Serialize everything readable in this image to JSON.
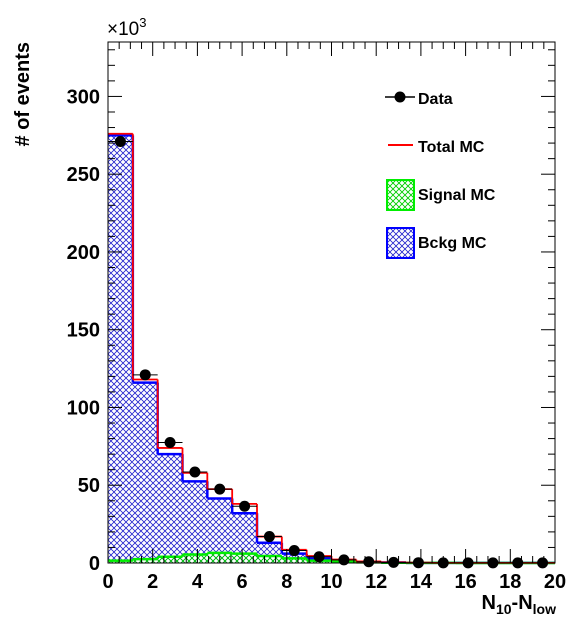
{
  "chart_data": {
    "type": "bar",
    "xlabel": {
      "main": "N",
      "sub1": "10",
      "mid": "-N",
      "sub2": "low"
    },
    "ylabel": "# of events",
    "exponent_prefix": "×10",
    "exponent_power": "3",
    "xlim": [
      0,
      20
    ],
    "ylim": [
      0,
      335
    ],
    "grid": false,
    "legend_placement": "top-right",
    "x_ticks": [
      "0",
      "2",
      "4",
      "6",
      "8",
      "10",
      "12",
      "14",
      "16",
      "18",
      "20"
    ],
    "y_ticks": [
      "0",
      "50",
      "100",
      "150",
      "200",
      "250",
      "300"
    ],
    "bin_edges": [
      0,
      1.111,
      2.222,
      3.333,
      4.444,
      5.556,
      6.667,
      7.778,
      8.889,
      10,
      11.111,
      12.222,
      13.333,
      14.444,
      15.556,
      16.667,
      17.778,
      18.889,
      20
    ],
    "series": [
      {
        "name": "Data",
        "kind": "points",
        "color": "#000000",
        "values": [
          271,
          121,
          77.5,
          58.5,
          47.5,
          36.5,
          17,
          8,
          4,
          2,
          0.8,
          0.4,
          0.2,
          0.1,
          0.1,
          0.1,
          0.1,
          0.1
        ]
      },
      {
        "name": "Total MC",
        "kind": "line",
        "color": "#ff0000",
        "values": [
          276,
          118,
          74,
          58,
          47.5,
          38,
          17,
          8.5,
          4.5,
          2.2,
          1,
          0.5,
          0.2,
          0.1,
          0.1,
          0.1,
          0.1,
          0.1
        ]
      },
      {
        "name": "Signal MC",
        "kind": "hatched",
        "color": "#00ee00",
        "values": [
          1.5,
          2.5,
          4,
          5.5,
          6.5,
          6,
          4.5,
          3,
          1.5,
          0.8,
          0.4,
          0.2,
          0.1,
          0.05,
          0,
          0,
          0,
          0
        ]
      },
      {
        "name": "Bckg MC",
        "kind": "hatched",
        "color": "#0000ff",
        "values": [
          275,
          116,
          70,
          52.5,
          41.5,
          32,
          13,
          6,
          3,
          1.5,
          0.6,
          0.3,
          0.1,
          0.05,
          0.05,
          0.05,
          0.05,
          0.05
        ]
      }
    ]
  }
}
